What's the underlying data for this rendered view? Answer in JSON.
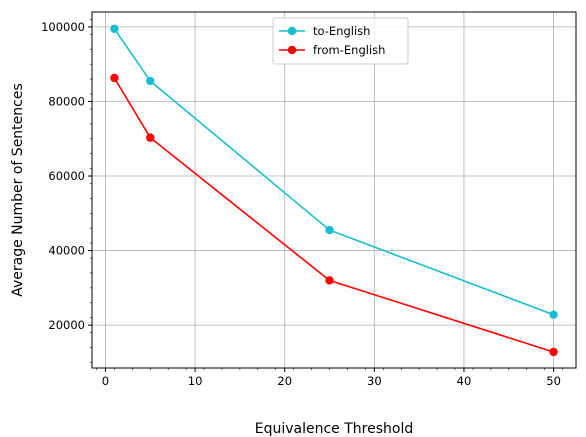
{
  "chart_data": {
    "type": "line",
    "title": "",
    "xlabel": "Equivalence Threshold",
    "ylabel": "Average Number of Sentences",
    "xlim": [
      -1.5,
      52.5
    ],
    "ylim": [
      8500,
      104000
    ],
    "xticks": [
      0,
      10,
      20,
      30,
      40,
      50
    ],
    "xtick_labels": [
      "0",
      "10",
      "20",
      "30",
      "40",
      "50"
    ],
    "yticks": [
      20000,
      40000,
      60000,
      80000,
      100000
    ],
    "ytick_labels": [
      "20000",
      "40000",
      "60000",
      "80000",
      "100000"
    ],
    "grid": true,
    "legend_position": "top-center",
    "x": [
      1,
      5,
      25,
      50
    ],
    "series": [
      {
        "name": "to-English",
        "color": "#17becf",
        "values": [
          99500,
          85500,
          45500,
          22800
        ]
      },
      {
        "name": "from-English",
        "color": "#ff0000",
        "values": [
          86300,
          70300,
          32000,
          12800
        ]
      }
    ]
  }
}
